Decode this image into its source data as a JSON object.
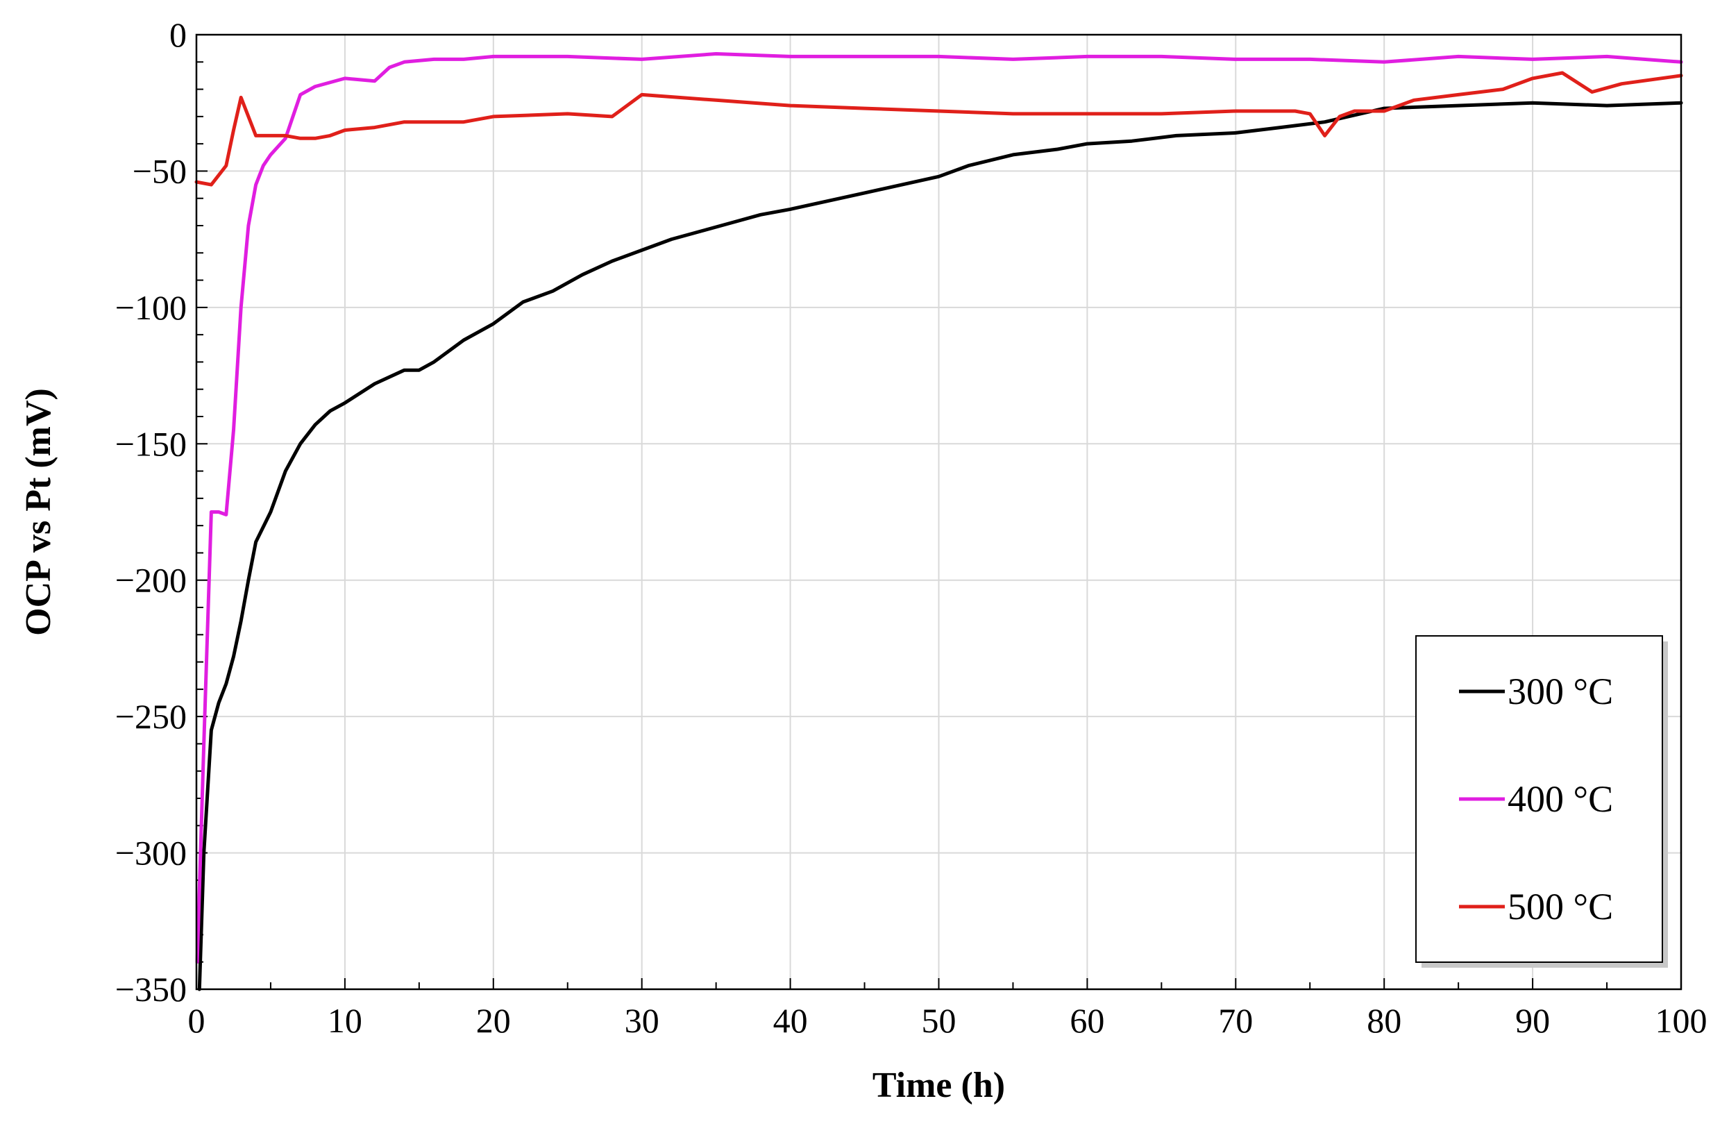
{
  "chart_data": {
    "type": "line",
    "title": "",
    "xlabel": "Time (h)",
    "ylabel": "OCP  vs Pt (mV)",
    "xlim": [
      0,
      100
    ],
    "ylim": [
      -350,
      0
    ],
    "x_ticks": [
      0,
      10,
      20,
      30,
      40,
      50,
      60,
      70,
      80,
      90,
      100
    ],
    "y_ticks": [
      0,
      -50,
      -100,
      -150,
      -200,
      -250,
      -300,
      -350
    ],
    "x_tick_labels": [
      "0",
      "10",
      "20",
      "30",
      "40",
      "50",
      "60",
      "70",
      "80",
      "90",
      "100"
    ],
    "y_tick_labels": [
      "0",
      "−50",
      "−100",
      "−150",
      "−200",
      "−250",
      "−300",
      "−350"
    ],
    "grid": true,
    "legend_position": "bottom-right",
    "series": [
      {
        "name": "300 °C",
        "color": "#000000",
        "x": [
          0.2,
          0.5,
          1,
          1.5,
          2,
          2.5,
          3,
          3.5,
          4,
          5,
          6,
          7,
          8,
          9,
          10,
          12,
          14,
          15,
          16,
          18,
          20,
          22,
          24,
          26,
          28,
          30,
          32,
          34,
          36,
          38,
          40,
          45,
          50,
          52,
          55,
          58,
          60,
          63,
          66,
          70,
          73,
          76,
          80,
          85,
          90,
          95,
          100
        ],
        "y": [
          -350,
          -300,
          -255,
          -245,
          -238,
          -228,
          -215,
          -200,
          -186,
          -175,
          -160,
          -150,
          -143,
          -138,
          -135,
          -128,
          -123,
          -123,
          -120,
          -112,
          -106,
          -98,
          -94,
          -88,
          -83,
          -79,
          -75,
          -72,
          -69,
          -66,
          -64,
          -58,
          -52,
          -48,
          -44,
          -42,
          -40,
          -39,
          -37,
          -36,
          -34,
          -32,
          -27,
          -26,
          -25,
          -26,
          -25
        ]
      },
      {
        "name": "400 °C",
        "color": "#e01ee0",
        "x": [
          0.05,
          0.5,
          1,
          1.5,
          2,
          2.5,
          3,
          3.5,
          4,
          4.5,
          5,
          6,
          7,
          8,
          10,
          12,
          13,
          14,
          16,
          18,
          20,
          25,
          30,
          35,
          40,
          45,
          50,
          55,
          60,
          65,
          70,
          75,
          80,
          85,
          90,
          95,
          100
        ],
        "y": [
          -340,
          -260,
          -175,
          -175,
          -176,
          -145,
          -100,
          -70,
          -55,
          -48,
          -44,
          -38,
          -22,
          -19,
          -16,
          -17,
          -12,
          -10,
          -9,
          -9,
          -8,
          -8,
          -9,
          -7,
          -8,
          -8,
          -8,
          -9,
          -8,
          -8,
          -9,
          -9,
          -10,
          -8,
          -9,
          -8,
          -10
        ]
      },
      {
        "name": "500 °C",
        "color": "#e0201a",
        "x": [
          0,
          1,
          2,
          2.5,
          3,
          3.5,
          4,
          5,
          6,
          7,
          8,
          9,
          10,
          12,
          14,
          16,
          18,
          20,
          25,
          28,
          30,
          35,
          40,
          45,
          50,
          55,
          60,
          65,
          70,
          74,
          75,
          76,
          77,
          78,
          80,
          82,
          85,
          88,
          90,
          92,
          94,
          96,
          100
        ],
        "y": [
          -54,
          -55,
          -48,
          -35,
          -23,
          -30,
          -37,
          -37,
          -37,
          -38,
          -38,
          -37,
          -35,
          -34,
          -32,
          -32,
          -32,
          -30,
          -29,
          -30,
          -22,
          -24,
          -26,
          -27,
          -28,
          -29,
          -29,
          -29,
          -28,
          -28,
          -29,
          -37,
          -30,
          -28,
          -28,
          -24,
          -22,
          -20,
          -16,
          -14,
          -21,
          -18,
          -15
        ]
      }
    ]
  }
}
